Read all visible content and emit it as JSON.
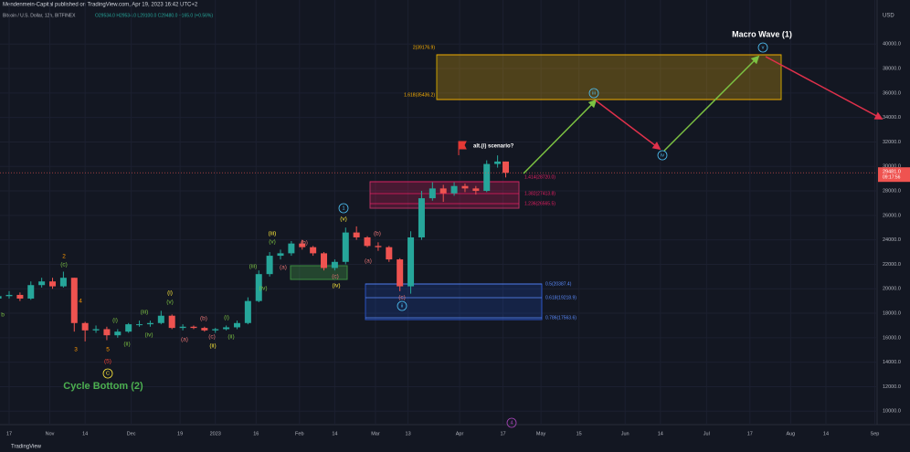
{
  "header": {
    "published": "Mendenmein-Capital published on TradingView.com, Apr 19, 2023 16:42 UTC+2",
    "footer": "TradingView"
  },
  "chart_data": {
    "type": "candlestick",
    "symbol": "Bitcoin / U.S. Dollar, 12h, BITFINEX",
    "ohlc_text": "O29534.0 H29534.0 L29100.0 C29480.0 +165.0 (+0.56%)",
    "currency": "USD",
    "last_price": {
      "value": 29481,
      "label": "29481.0"
    },
    "countdown": "09:17:56",
    "x": [
      "2022-10-09",
      "2022-10-13",
      "2022-10-17",
      "2022-10-21",
      "2022-10-25",
      "2022-10-29",
      "2022-11-02",
      "2022-11-06",
      "2022-11-10",
      "2022-11-14",
      "2022-11-18",
      "2022-11-22",
      "2022-11-26",
      "2022-11-30",
      "2022-12-04",
      "2022-12-08",
      "2022-12-12",
      "2022-12-16",
      "2022-12-20",
      "2022-12-24",
      "2022-12-28",
      "2023-01-01",
      "2023-01-05",
      "2023-01-09",
      "2023-01-13",
      "2023-01-17",
      "2023-01-21",
      "2023-01-25",
      "2023-01-29",
      "2023-02-02",
      "2023-02-06",
      "2023-02-10",
      "2023-02-14",
      "2023-02-18",
      "2023-02-22",
      "2023-02-26",
      "2023-03-02",
      "2023-03-06",
      "2023-03-10",
      "2023-03-14",
      "2023-03-18",
      "2023-03-22",
      "2023-03-26",
      "2023-03-30",
      "2023-04-03",
      "2023-04-07",
      "2023-04-11",
      "2023-04-15",
      "2023-04-18"
    ],
    "open": [
      19100,
      19200,
      19400,
      19500,
      19200,
      20300,
      20600,
      20200,
      20900,
      17200,
      16600,
      16700,
      16200,
      16500,
      17100,
      17100,
      17200,
      17800,
      16800,
      16900,
      16800,
      16600,
      16700,
      16850,
      17200,
      19000,
      21200,
      22700,
      22900,
      23700,
      23400,
      22900,
      21700,
      22200,
      24600,
      24200,
      23500,
      23400,
      22400,
      20200,
      24200,
      27400,
      28200,
      27800,
      28400,
      28200,
      28000,
      30200,
      30400
    ],
    "high": [
      19500,
      19700,
      19800,
      19700,
      20600,
      20900,
      20900,
      21400,
      20900,
      17300,
      17000,
      16900,
      16700,
      17200,
      17400,
      17400,
      18200,
      17900,
      17100,
      17000,
      16900,
      16800,
      17000,
      17400,
      19300,
      21500,
      23000,
      23200,
      23900,
      24000,
      23500,
      23000,
      22400,
      25000,
      25100,
      24300,
      23800,
      23500,
      22500,
      24700,
      28000,
      28700,
      28500,
      28700,
      28600,
      28400,
      30500,
      30900,
      30400
    ],
    "low": [
      18900,
      19000,
      19200,
      19000,
      19100,
      20100,
      20000,
      20100,
      16500,
      15700,
      16400,
      15800,
      16000,
      16400,
      16900,
      16900,
      17100,
      16700,
      16600,
      16700,
      16500,
      16400,
      16600,
      16700,
      17100,
      18900,
      21000,
      22400,
      22700,
      23200,
      22700,
      21500,
      21500,
      22000,
      24000,
      23400,
      23100,
      22200,
      19800,
      19600,
      24000,
      27200,
      27100,
      27600,
      27900,
      27700,
      27900,
      29900,
      29100
    ],
    "close": [
      19200,
      19400,
      19500,
      19200,
      20300,
      20600,
      20200,
      20900,
      17200,
      16600,
      16700,
      16200,
      16500,
      17100,
      17100,
      17200,
      17800,
      16800,
      16900,
      16800,
      16600,
      16700,
      16850,
      17200,
      19000,
      21200,
      22700,
      22900,
      23700,
      23400,
      22900,
      21700,
      22200,
      24600,
      24200,
      23500,
      23400,
      22400,
      20200,
      24200,
      27400,
      28200,
      27800,
      28400,
      28200,
      28000,
      30200,
      30400,
      29480
    ],
    "up_color": "#26a69a",
    "down_color": "#ef5350",
    "ylim": [
      8900,
      43600
    ],
    "yticks": [
      {
        "value": 10000,
        "label": "10000.0"
      },
      {
        "value": 12000,
        "label": "12000.0"
      },
      {
        "value": 14000,
        "label": "14000.0"
      },
      {
        "value": 16000,
        "label": "16000.0"
      },
      {
        "value": 18000,
        "label": "18000.0"
      },
      {
        "value": 20000,
        "label": "20000.0"
      },
      {
        "value": 22000,
        "label": "22000.0"
      },
      {
        "value": 24000,
        "label": "24000.0"
      },
      {
        "value": 26000,
        "label": "26000.0"
      },
      {
        "value": 28000,
        "label": "28000.0"
      },
      {
        "value": 30000,
        "label": "30000.0"
      },
      {
        "value": 32000,
        "label": "32000.0"
      },
      {
        "value": 34000,
        "label": "34000.0"
      },
      {
        "value": 36000,
        "label": "36000.0"
      },
      {
        "value": 38000,
        "label": "38000.0"
      },
      {
        "value": 40000,
        "label": "40000.0"
      }
    ],
    "xticks": [
      {
        "value": "2022-10-17",
        "label": "17"
      },
      {
        "value": "2022-11-01",
        "label": "Nov"
      },
      {
        "value": "2022-11-14",
        "label": "14"
      },
      {
        "value": "2022-12-01",
        "label": "Dec"
      },
      {
        "value": "2022-12-19",
        "label": "19"
      },
      {
        "value": "2023-01-01",
        "label": "2023"
      },
      {
        "value": "2023-01-16",
        "label": "16"
      },
      {
        "value": "2023-02-01",
        "label": "Feb"
      },
      {
        "value": "2023-02-14",
        "label": "14"
      },
      {
        "value": "2023-03-01",
        "label": "Mar"
      },
      {
        "value": "2023-03-13",
        "label": "13"
      },
      {
        "value": "2023-04-01",
        "label": "Apr"
      },
      {
        "value": "2023-04-17",
        "label": "17"
      },
      {
        "value": "2023-05-01",
        "label": "May"
      },
      {
        "value": "2023-05-15",
        "label": "15"
      },
      {
        "value": "2023-06-01",
        "label": "Jun"
      },
      {
        "value": "2023-06-14",
        "label": "14"
      },
      {
        "value": "2023-07-01",
        "label": "Jul"
      },
      {
        "value": "2023-07-17",
        "label": "17"
      },
      {
        "value": "2023-08-01",
        "label": "Aug"
      },
      {
        "value": "2023-08-14",
        "label": "14"
      },
      {
        "value": "2023-09-01",
        "label": "Sep"
      }
    ],
    "grid": true,
    "titles": {
      "macro": "Macro Wave (1)",
      "cycle": "Cycle Bottom (2)",
      "alt": "alt.(i) scenario?"
    },
    "fib_levels": [
      "2(39176.9)",
      "1.618(35436.2)",
      "1.414(28720.0)",
      "1.382(27413.8)",
      "1.236(26565.5)",
      "0.5(20387.4)",
      "0.618(19218.9)",
      "0.786(17563.6)"
    ],
    "wave_labels": [
      "2",
      "(c)",
      "4",
      "3",
      "5",
      "(5)",
      "C",
      "(i)",
      "(ii)",
      "(iii)",
      "(iv)",
      "(i)",
      "(v)",
      "(a)",
      "(b)",
      "(c)",
      "(ii)",
      "(i)",
      "(ii)",
      "(iii)",
      "(iv)",
      "(iii)",
      "(v)",
      "(a)",
      "(b)",
      "(c)",
      "(iv)",
      "1",
      "(v)",
      "(b)",
      "(a)",
      "(c)",
      "ii",
      "iii",
      "iv",
      "v",
      "b",
      "4"
    ]
  }
}
